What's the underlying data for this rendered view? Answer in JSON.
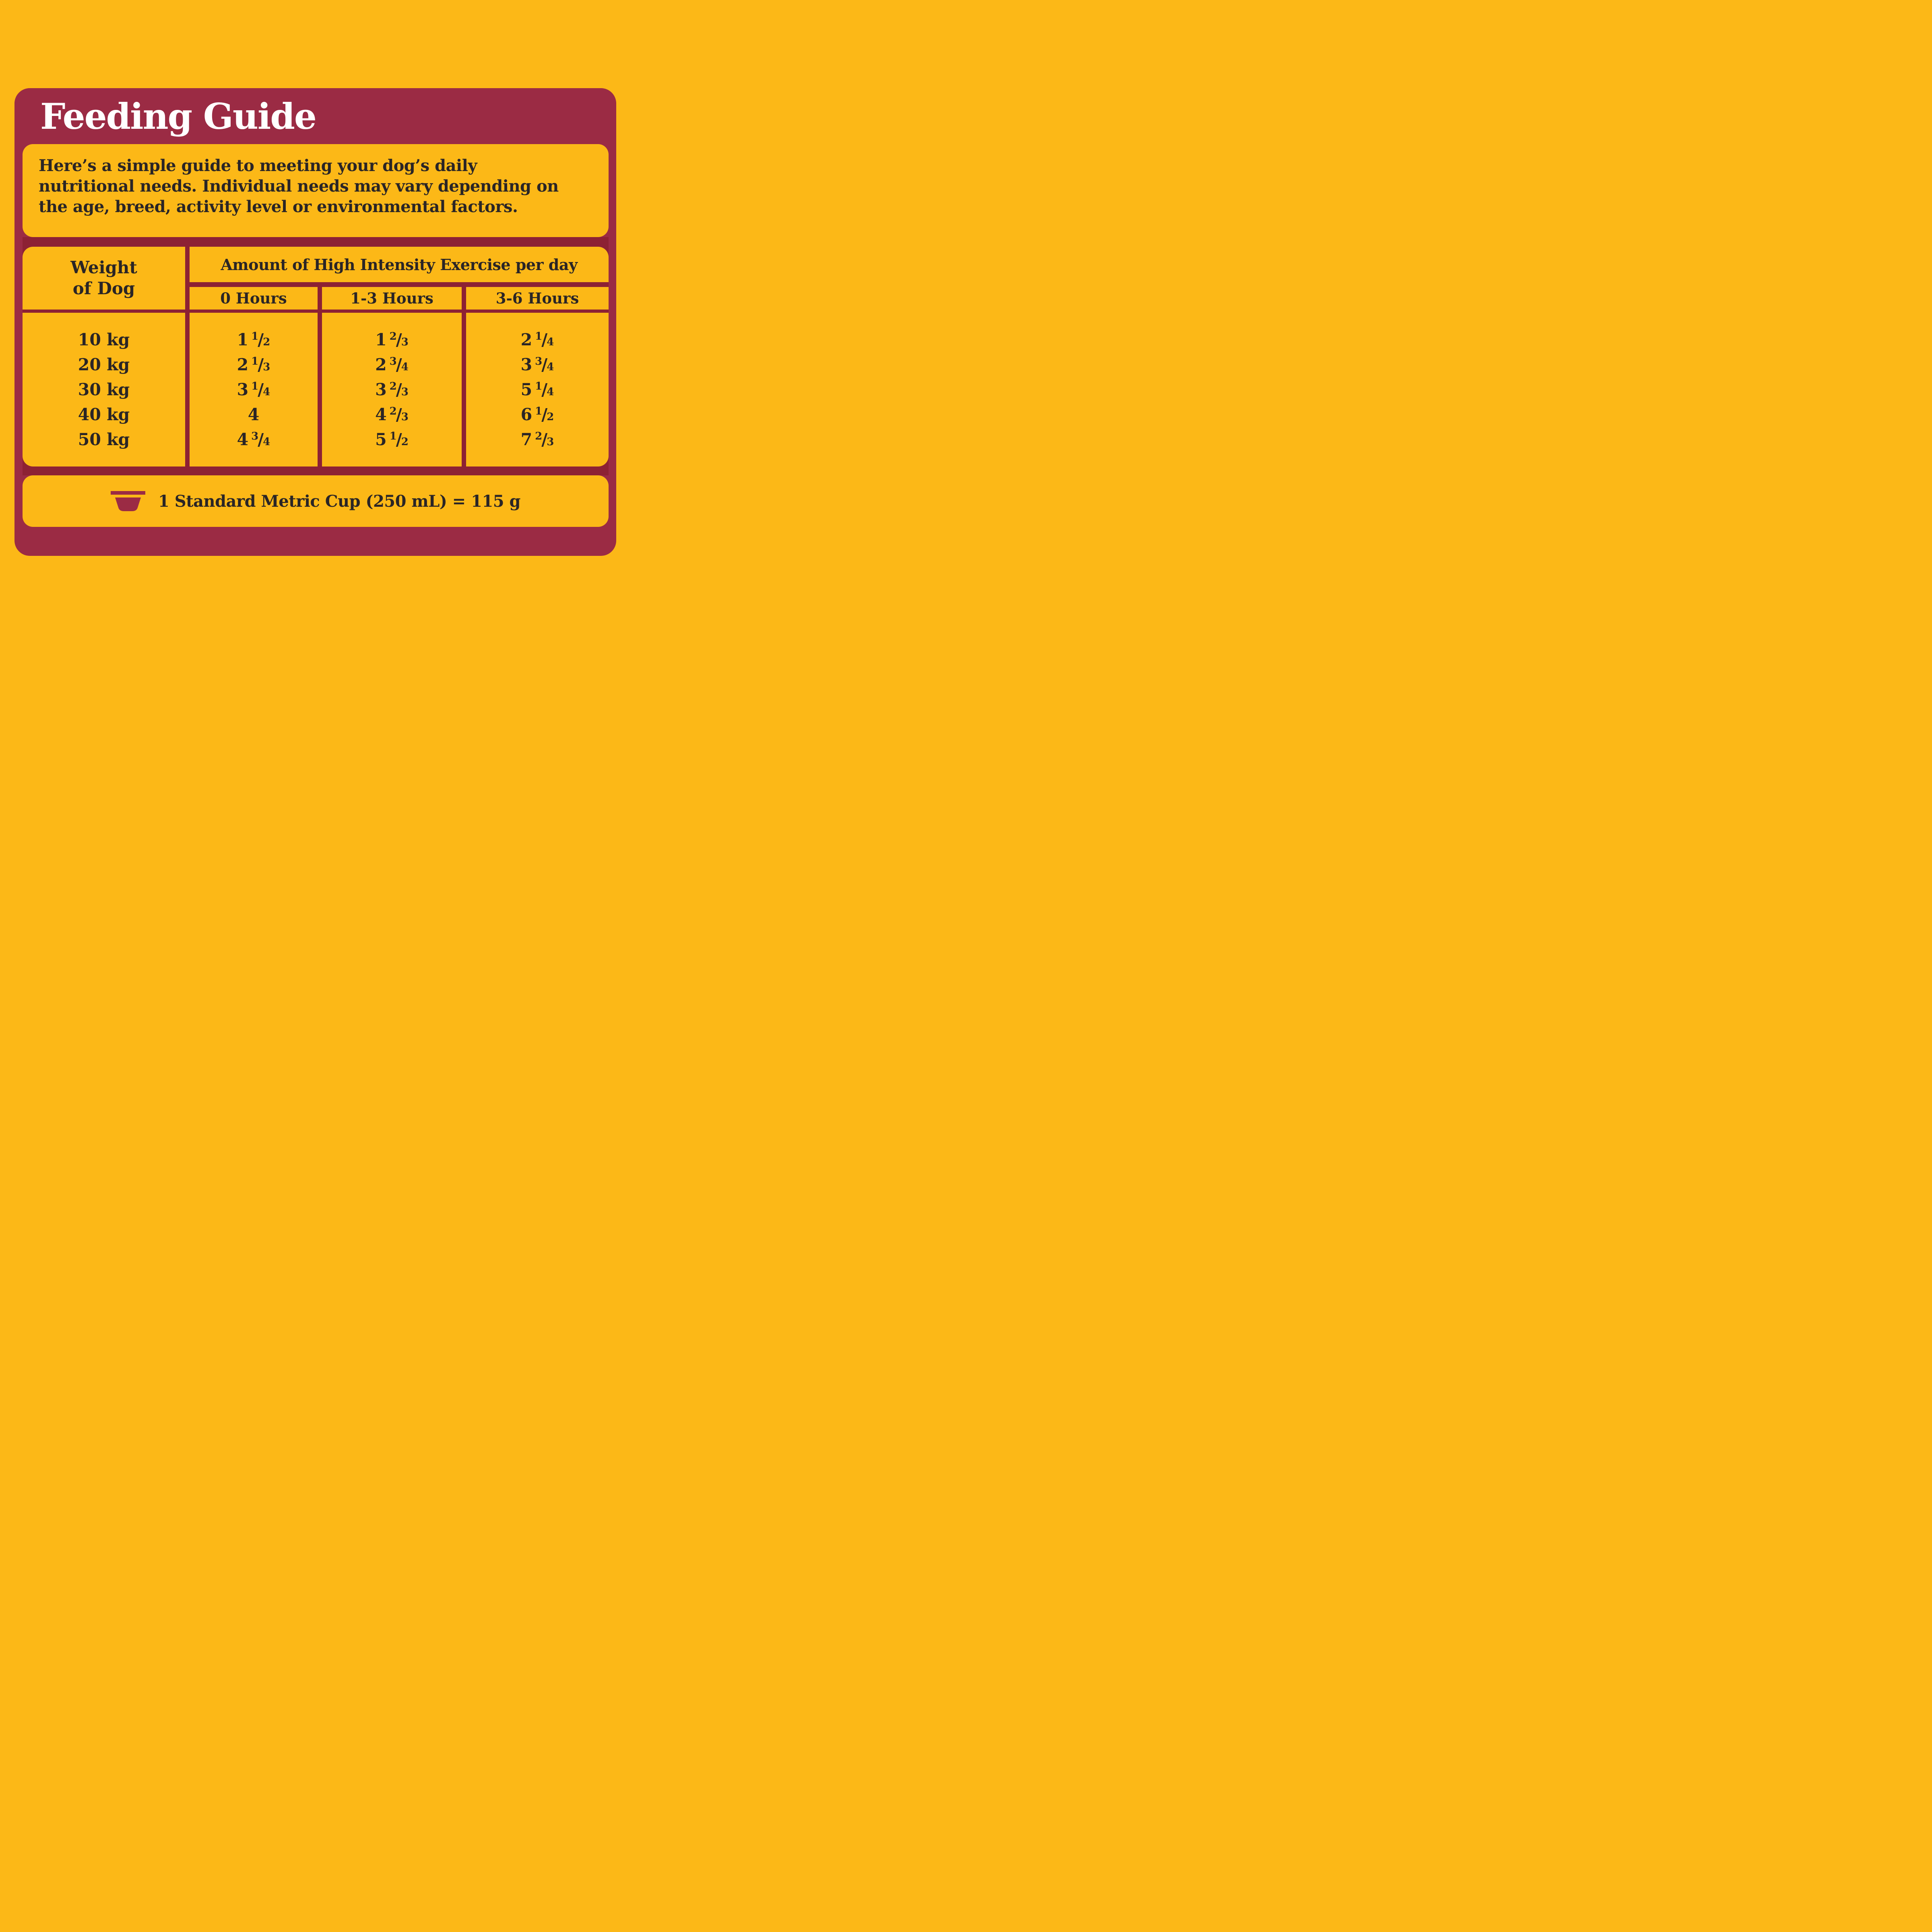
{
  "colors": {
    "background": "#FCB817",
    "card": "#9B2B44",
    "grid": "#8D2134",
    "cell": "#FCB817",
    "text": "#2A2526",
    "heading": "#FFFFFF"
  },
  "header": {
    "title": "Feeding Guide"
  },
  "intro": {
    "text": "Here’s a simple guide to meeting your dog’s daily\nnutritional needs. Individual needs may vary depending on\nthe age, breed, activity level or environmental factors."
  },
  "table": {
    "weight_header": "Weight\nof Dog",
    "exercise_header": "Amount of High Intensity Exercise per day",
    "columns": [
      "0 Hours",
      "1-3 Hours",
      "3-6 Hours"
    ],
    "rows": [
      {
        "weight": "10 kg",
        "values": [
          "1 1/2",
          "1 2/3",
          "2 1/4"
        ]
      },
      {
        "weight": "20 kg",
        "values": [
          "2 1/3",
          "2 3/4",
          "3 3/4"
        ]
      },
      {
        "weight": "30 kg",
        "values": [
          "3 1/4",
          "3 2/3",
          "5 1/4"
        ]
      },
      {
        "weight": "40 kg",
        "values": [
          "4",
          "4 2/3",
          "6 1/2"
        ]
      },
      {
        "weight": "50 kg",
        "values": [
          "4 3/4",
          "5 1/2",
          "7 2/3"
        ]
      }
    ]
  },
  "note": {
    "icon": "metric-cup-icon",
    "text": "1 Standard Metric Cup (250 mL) = 115 g"
  }
}
